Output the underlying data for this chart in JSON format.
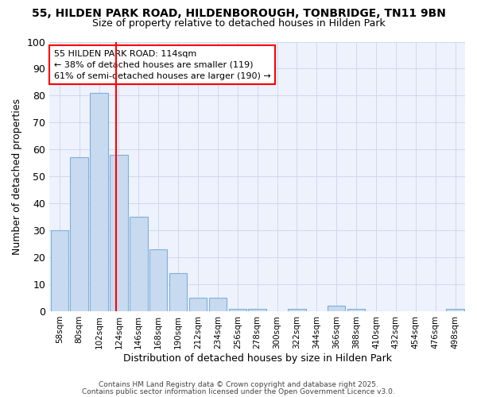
{
  "title_line1": "55, HILDEN PARK ROAD, HILDENBOROUGH, TONBRIDGE, TN11 9BN",
  "title_line2": "Size of property relative to detached houses in Hilden Park",
  "xlabel": "Distribution of detached houses by size in Hilden Park",
  "ylabel": "Number of detached properties",
  "categories": [
    "58sqm",
    "80sqm",
    "102sqm",
    "124sqm",
    "146sqm",
    "168sqm",
    "190sqm",
    "212sqm",
    "234sqm",
    "256sqm",
    "278sqm",
    "300sqm",
    "322sqm",
    "344sqm",
    "366sqm",
    "388sqm",
    "410sqm",
    "432sqm",
    "454sqm",
    "476sqm",
    "498sqm"
  ],
  "values": [
    30,
    57,
    81,
    58,
    35,
    23,
    14,
    5,
    5,
    1,
    1,
    0,
    1,
    0,
    2,
    1,
    0,
    0,
    0,
    0,
    1
  ],
  "bar_color": "#c8daf0",
  "bar_edge_color": "#7fafd8",
  "red_line_x": 2.88,
  "annotation_text": "55 HILDEN PARK ROAD: 114sqm\n← 38% of detached houses are smaller (119)\n61% of semi-detached houses are larger (190) →",
  "annotation_box_color": "white",
  "annotation_box_edge": "red",
  "ylim": [
    0,
    100
  ],
  "yticks": [
    0,
    10,
    20,
    30,
    40,
    50,
    60,
    70,
    80,
    90,
    100
  ],
  "footer_line1": "Contains HM Land Registry data © Crown copyright and database right 2025.",
  "footer_line2": "Contains public sector information licensed under the Open Government Licence v3.0.",
  "bg_color": "#ffffff",
  "plot_bg_color": "#eef2fc",
  "grid_color": "#d0d8f0"
}
